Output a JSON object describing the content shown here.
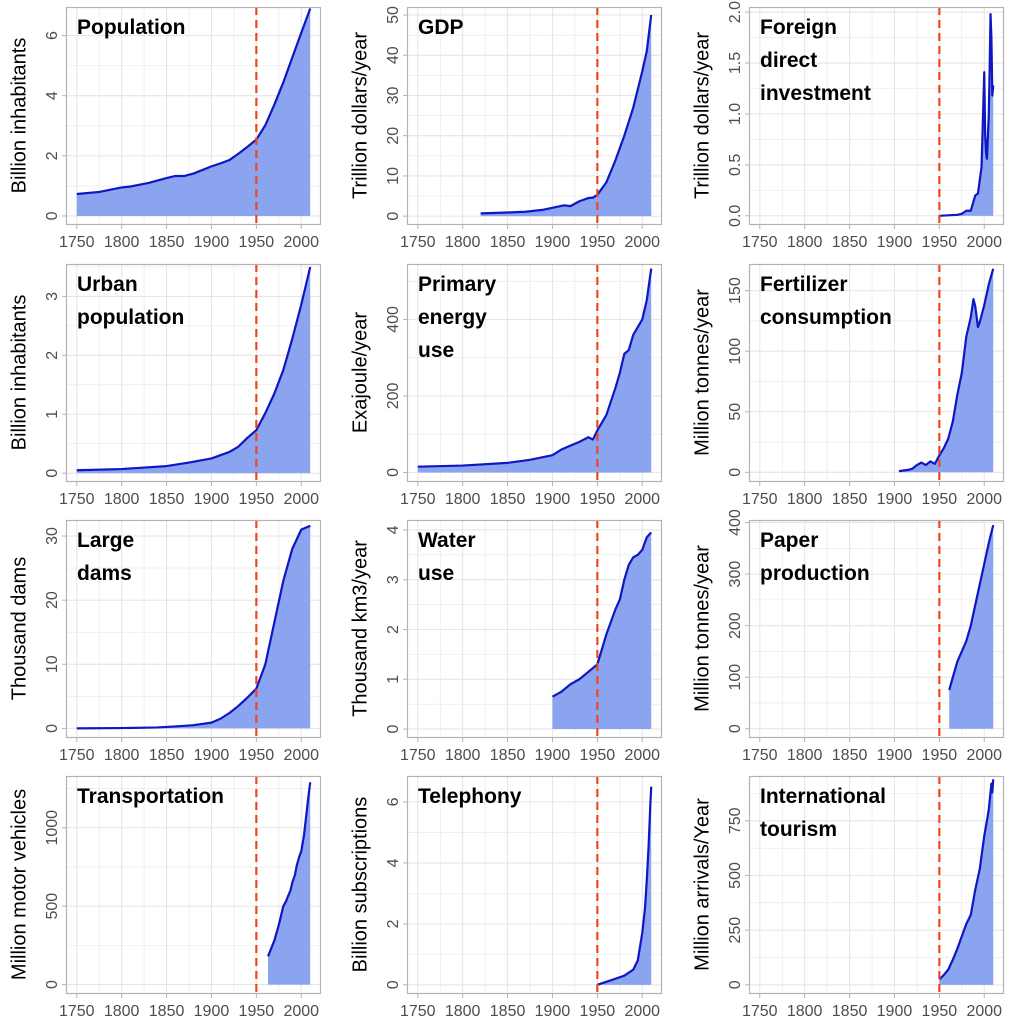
{
  "colors": {
    "fill": "#8ba4ef",
    "line": "#0f16c4",
    "reference_line": "#f0471e",
    "grid": "#e6e6e6",
    "panel_border": "#b3b3b3",
    "tick_text": "#4d4d4d"
  },
  "chart_data": [
    {
      "type": "area",
      "title": "Population",
      "ylabel": "Billion inhabitants",
      "xlim": [
        1738,
        2022
      ],
      "ylim": [
        -0.3,
        6.95
      ],
      "xticks": [
        1750,
        1800,
        1850,
        1900,
        1950,
        2000
      ],
      "yticks": [
        0,
        2,
        4,
        6
      ],
      "reference_x": 1950,
      "grid": true,
      "x": [
        1750,
        1775,
        1800,
        1810,
        1820,
        1830,
        1850,
        1860,
        1870,
        1880,
        1900,
        1910,
        1920,
        1930,
        1940,
        1950,
        1960,
        1970,
        1980,
        1990,
        2000,
        2010
      ],
      "y": [
        0.73,
        0.8,
        0.95,
        0.98,
        1.04,
        1.1,
        1.26,
        1.33,
        1.33,
        1.41,
        1.65,
        1.75,
        1.86,
        2.07,
        2.3,
        2.54,
        3.02,
        3.7,
        4.44,
        5.27,
        6.09,
        6.9
      ]
    },
    {
      "type": "area",
      "title": "GDP",
      "ylabel": "Trillion dollars/year",
      "xlim": [
        1738,
        2022
      ],
      "ylim": [
        -2.2,
        52
      ],
      "xticks": [
        1750,
        1800,
        1850,
        1900,
        1950,
        2000
      ],
      "yticks": [
        0,
        10,
        20,
        30,
        40,
        50
      ],
      "reference_x": 1950,
      "grid": true,
      "x": [
        1820,
        1850,
        1870,
        1890,
        1913,
        1920,
        1930,
        1940,
        1945,
        1950,
        1960,
        1970,
        1980,
        1990,
        2000,
        2005,
        2010
      ],
      "y": [
        0.7,
        0.9,
        1.1,
        1.6,
        2.7,
        2.5,
        3.7,
        4.5,
        4.6,
        5.3,
        8.4,
        13.8,
        20.0,
        27.0,
        36.0,
        41.0,
        50.0
      ]
    },
    {
      "type": "area",
      "title": "Foreign\ndirect\ninvestment",
      "ylabel": "Trillion dollars/year",
      "xlim": [
        1738,
        2022
      ],
      "ylim": [
        -0.09,
        2.05
      ],
      "xticks": [
        1750,
        1800,
        1850,
        1900,
        1950,
        2000
      ],
      "yticks": [
        0.0,
        0.5,
        1.0,
        1.5,
        2.0
      ],
      "reference_x": 1950,
      "grid": true,
      "x": [
        1950,
        1970,
        1975,
        1980,
        1985,
        1990,
        1993,
        1997,
        1999,
        2000,
        2001,
        2002,
        2003,
        2005,
        2006,
        2007,
        2008,
        2009,
        2010
      ],
      "y": [
        0.0,
        0.01,
        0.02,
        0.05,
        0.05,
        0.2,
        0.22,
        0.48,
        1.1,
        1.41,
        0.8,
        0.63,
        0.56,
        0.98,
        1.42,
        1.98,
        1.74,
        1.18,
        1.28
      ]
    },
    {
      "type": "area",
      "title": "Urban\npopulation",
      "ylabel": "Billion inhabitants",
      "xlim": [
        1738,
        2022
      ],
      "ylim": [
        -0.15,
        3.55
      ],
      "xticks": [
        1750,
        1800,
        1850,
        1900,
        1950,
        2000
      ],
      "yticks": [
        0,
        1,
        2,
        3
      ],
      "reference_x": 1950,
      "grid": true,
      "x": [
        1750,
        1800,
        1850,
        1875,
        1900,
        1920,
        1930,
        1940,
        1950,
        1960,
        1970,
        1980,
        1990,
        2000,
        2010
      ],
      "y": [
        0.05,
        0.07,
        0.12,
        0.18,
        0.25,
        0.36,
        0.45,
        0.6,
        0.73,
        1.02,
        1.35,
        1.75,
        2.28,
        2.86,
        3.5
      ]
    },
    {
      "type": "area",
      "title": "Primary\nenergy\nuse",
      "ylabel": "Exajoule/year",
      "xlim": [
        1738,
        2022
      ],
      "ylim": [
        -25,
        545
      ],
      "xticks": [
        1750,
        1800,
        1850,
        1900,
        1950,
        2000
      ],
      "yticks": [
        0,
        200,
        400
      ],
      "reference_x": 1950,
      "grid": true,
      "x": [
        1750,
        1800,
        1850,
        1875,
        1900,
        1910,
        1920,
        1930,
        1940,
        1945,
        1950,
        1960,
        1970,
        1975,
        1980,
        1985,
        1990,
        2000,
        2005,
        2010
      ],
      "y": [
        15,
        18,
        25,
        33,
        45,
        60,
        70,
        80,
        92,
        86,
        110,
        150,
        220,
        260,
        310,
        320,
        360,
        400,
        450,
        533
      ]
    },
    {
      "type": "area",
      "title": "Fertilizer\nconsumption",
      "ylabel": "Million tonnes/year",
      "xlim": [
        1738,
        2022
      ],
      "ylim": [
        -8,
        172
      ],
      "xticks": [
        1750,
        1800,
        1850,
        1900,
        1950,
        2000
      ],
      "yticks": [
        0,
        50,
        100,
        150
      ],
      "reference_x": 1950,
      "grid": true,
      "x": [
        1905,
        1915,
        1920,
        1925,
        1930,
        1935,
        1940,
        1945,
        1950,
        1955,
        1960,
        1965,
        1970,
        1975,
        1980,
        1985,
        1988,
        1990,
        1993,
        1995,
        2000,
        2005,
        2008,
        2010
      ],
      "y": [
        1,
        2,
        3,
        6,
        8,
        6,
        9,
        7,
        14,
        20,
        28,
        42,
        64,
        82,
        112,
        128,
        143,
        137,
        120,
        124,
        138,
        155,
        163,
        168
      ]
    },
    {
      "type": "area",
      "title": "Large\ndams",
      "ylabel": "Thousand dams",
      "xlim": [
        1738,
        2022
      ],
      "ylim": [
        -1.5,
        32.5
      ],
      "xticks": [
        1750,
        1800,
        1850,
        1900,
        1950,
        2000
      ],
      "yticks": [
        0,
        10,
        20,
        30
      ],
      "reference_x": 1950,
      "grid": true,
      "x": [
        1750,
        1800,
        1840,
        1860,
        1880,
        1900,
        1910,
        1920,
        1930,
        1940,
        1950,
        1960,
        1970,
        1980,
        1990,
        2000,
        2010
      ],
      "y": [
        0.0,
        0.05,
        0.15,
        0.3,
        0.5,
        0.9,
        1.5,
        2.4,
        3.5,
        4.8,
        6.2,
        10.0,
        16.5,
        23.0,
        28.0,
        31.0,
        31.6
      ]
    },
    {
      "type": "area",
      "title": "Water\nuse",
      "ylabel": "Thousand km3/year",
      "xlim": [
        1738,
        2022
      ],
      "ylim": [
        -0.18,
        4.2
      ],
      "xticks": [
        1750,
        1800,
        1850,
        1900,
        1950,
        2000
      ],
      "yticks": [
        0,
        1,
        2,
        3,
        4
      ],
      "reference_x": 1950,
      "grid": true,
      "x": [
        1900,
        1910,
        1920,
        1930,
        1940,
        1950,
        1960,
        1970,
        1975,
        1980,
        1985,
        1990,
        1995,
        2000,
        2005,
        2010
      ],
      "y": [
        0.65,
        0.75,
        0.9,
        1.0,
        1.15,
        1.3,
        1.9,
        2.4,
        2.6,
        3.0,
        3.3,
        3.45,
        3.5,
        3.6,
        3.85,
        3.95
      ]
    },
    {
      "type": "area",
      "title": "Paper\nproduction",
      "ylabel": "Million tonnes/year",
      "xlim": [
        1738,
        2022
      ],
      "ylim": [
        -18,
        405
      ],
      "xticks": [
        1750,
        1800,
        1850,
        1900,
        1950,
        2000
      ],
      "yticks": [
        0,
        100,
        200,
        300,
        400
      ],
      "reference_x": 1950,
      "grid": true,
      "x": [
        1961,
        1965,
        1970,
        1975,
        1980,
        1985,
        1990,
        1995,
        2000,
        2005,
        2010
      ],
      "y": [
        75,
        100,
        130,
        150,
        170,
        200,
        240,
        280,
        320,
        360,
        395
      ]
    },
    {
      "type": "area",
      "title": "Transportation",
      "ylabel": "Million motor vehicles",
      "xlim": [
        1738,
        2022
      ],
      "ylim": [
        -60,
        1330
      ],
      "xticks": [
        1750,
        1800,
        1850,
        1900,
        1950,
        2000
      ],
      "yticks": [
        0,
        500,
        1000
      ],
      "reference_x": 1950,
      "grid": true,
      "x": [
        1963,
        1970,
        1975,
        1980,
        1983,
        1985,
        1988,
        1990,
        1993,
        1995,
        1998,
        2000,
        2003,
        2005,
        2008,
        2010
      ],
      "y": [
        180,
        280,
        380,
        500,
        530,
        560,
        600,
        650,
        700,
        760,
        820,
        850,
        950,
        1050,
        1200,
        1290
      ]
    },
    {
      "type": "area",
      "title": "Telephony",
      "ylabel": "Billion subscriptions",
      "xlim": [
        1738,
        2022
      ],
      "ylim": [
        -0.3,
        6.85
      ],
      "xticks": [
        1750,
        1800,
        1850,
        1900,
        1950,
        2000
      ],
      "yticks": [
        0,
        2,
        4,
        6
      ],
      "reference_x": 1950,
      "grid": true,
      "x": [
        1950,
        1960,
        1970,
        1980,
        1990,
        1995,
        2000,
        2003,
        2005,
        2007,
        2008,
        2009,
        2010
      ],
      "y": [
        0.0,
        0.1,
        0.2,
        0.3,
        0.5,
        0.8,
        1.7,
        2.5,
        3.4,
        4.5,
        5.2,
        5.9,
        6.5
      ]
    },
    {
      "type": "area",
      "title": "International\ntourism",
      "ylabel": "Million arrivals/Year",
      "xlim": [
        1738,
        2022
      ],
      "ylim": [
        -42,
        955
      ],
      "xticks": [
        1750,
        1800,
        1850,
        1900,
        1950,
        2000
      ],
      "yticks": [
        0,
        250,
        500,
        750
      ],
      "reference_x": 1950,
      "grid": true,
      "x": [
        1950,
        1955,
        1960,
        1965,
        1970,
        1975,
        1980,
        1985,
        1990,
        1995,
        2000,
        2005,
        2008,
        2009,
        2010
      ],
      "y": [
        25,
        45,
        70,
        115,
        165,
        222,
        278,
        320,
        435,
        530,
        680,
        800,
        920,
        880,
        940
      ]
    }
  ]
}
